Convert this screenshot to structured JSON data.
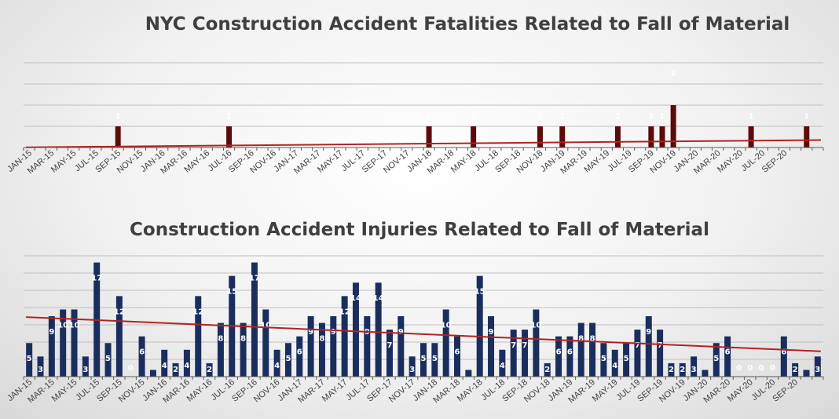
{
  "colors": {
    "fatal_bar": "#5c0a0a",
    "injury_bar": "#1a2e5e",
    "trend": "#b22222",
    "grid": "#bfbfbf",
    "axis": "#595959"
  },
  "chart_data": [
    {
      "type": "bar",
      "title": "NYC Construction Accident Fatalities Related to Fall of Material",
      "tick_labels": [
        "JAN-15",
        "MAR-15",
        "MAY-15",
        "JUL-15",
        "SEP-15",
        "NOV-15",
        "JAN-16",
        "MAR-16",
        "MAY-16",
        "JUL-16",
        "SEP-16",
        "NOV-16",
        "JAN-17",
        "MAR-17",
        "MAY-17",
        "JUL-17",
        "SEP-17",
        "NOV-17",
        "JAN-18",
        "MAR-18",
        "MAY-18",
        "JUL-18",
        "SEP-18",
        "NOV-18",
        "JAN-19",
        "MAR-19",
        "MAY-19",
        "JUL-19",
        "SEP-19",
        "NOV-19",
        "JAN-20",
        "MAR-20",
        "MAY-20",
        "JUL-20",
        "SEP-20"
      ],
      "values": [
        0,
        0,
        0,
        0,
        0,
        0,
        0,
        0,
        1,
        0,
        0,
        0,
        0,
        0,
        0,
        0,
        0,
        0,
        1,
        0,
        0,
        0,
        0,
        0,
        0,
        0,
        0,
        0,
        0,
        0,
        0,
        0,
        0,
        0,
        0,
        0,
        1,
        0,
        0,
        0,
        1,
        0,
        0,
        0,
        0,
        0,
        1,
        0,
        1,
        0,
        0,
        0,
        0,
        1,
        0,
        0,
        1,
        1,
        2,
        0,
        0,
        0,
        0,
        0,
        0,
        1,
        0,
        0,
        0,
        0,
        1,
        0
      ],
      "ylim": [
        0,
        4
      ],
      "grid": true,
      "trendline": true
    },
    {
      "type": "bar",
      "title": "Construction Accident Injuries Related to Fall of Material",
      "tick_labels": [
        "JAN-15",
        "MAR-15",
        "MAY-15",
        "JUL-15",
        "SEP-15",
        "NOV-15",
        "JAN-16",
        "MAR-16",
        "MAY-16",
        "JUL-16",
        "SEP-16",
        "NOV-16",
        "JAN-17",
        "MAR-17",
        "MAY-17",
        "JUL-17",
        "SEP-17",
        "NOV-17",
        "JAN-18",
        "MAR-18",
        "MAY-18",
        "JUL-18",
        "SEP-18",
        "NOV-18",
        "JAN-19",
        "MAR-19",
        "MAY-19",
        "JUL-19",
        "SEP-19",
        "NOV-19",
        "JAN-20",
        "MAR-20",
        "MAY-20",
        "JUL-20",
        "SEP-20"
      ],
      "values": [
        5,
        3,
        9,
        10,
        10,
        3,
        17,
        5,
        12,
        0,
        6,
        1,
        4,
        2,
        4,
        12,
        2,
        8,
        15,
        8,
        17,
        10,
        4,
        5,
        6,
        9,
        8,
        9,
        12,
        14,
        9,
        14,
        7,
        9,
        3,
        5,
        5,
        10,
        6,
        1,
        15,
        9,
        4,
        7,
        7,
        10,
        2,
        6,
        6,
        8,
        8,
        5,
        4,
        5,
        7,
        9,
        7,
        2,
        2,
        3,
        1,
        5,
        6,
        0,
        0,
        0,
        0,
        6,
        2,
        1,
        3
      ],
      "ylim": [
        0,
        18
      ],
      "grid": true,
      "trendline": true
    }
  ]
}
